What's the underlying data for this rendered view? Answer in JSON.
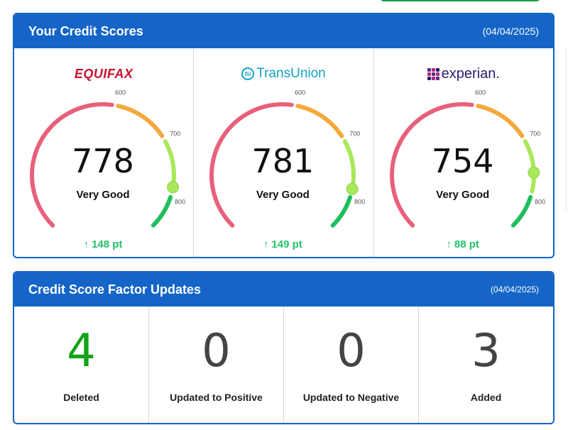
{
  "scores_panel": {
    "title": "Your Credit Scores",
    "date": "(04/04/2025)",
    "bureaus": [
      {
        "name": "EQUIFAX",
        "score": "778",
        "score_num": 778,
        "rating": "Very Good",
        "change": "148 pt"
      },
      {
        "name": "TransUnion",
        "logo_mark": "tu",
        "score": "781",
        "score_num": 781,
        "rating": "Very Good",
        "change": "149 pt"
      },
      {
        "name": "experian.",
        "score": "754",
        "score_num": 754,
        "rating": "Very Good",
        "change": "88 pt"
      }
    ],
    "ticks": [
      "600",
      "700",
      "800"
    ],
    "colors": {
      "poor": "#e8607a",
      "fair": "#f5a93b",
      "good": "#a8e85a",
      "excellent": "#1fbf5c",
      "header": "#1565c8",
      "change": "#1fc26a"
    }
  },
  "factors_panel": {
    "title": "Credit Score Factor Updates",
    "date": "(04/04/2025)",
    "items": [
      {
        "value": "4",
        "label": "Deleted",
        "color": "#12a318"
      },
      {
        "value": "0",
        "label": "Updated to Positive",
        "color": "#444444"
      },
      {
        "value": "0",
        "label": "Updated to Negative",
        "color": "#444444"
      },
      {
        "value": "3",
        "label": "Added",
        "color": "#444444"
      }
    ]
  },
  "icons": {
    "change_arrow": "arrow-up-icon"
  }
}
